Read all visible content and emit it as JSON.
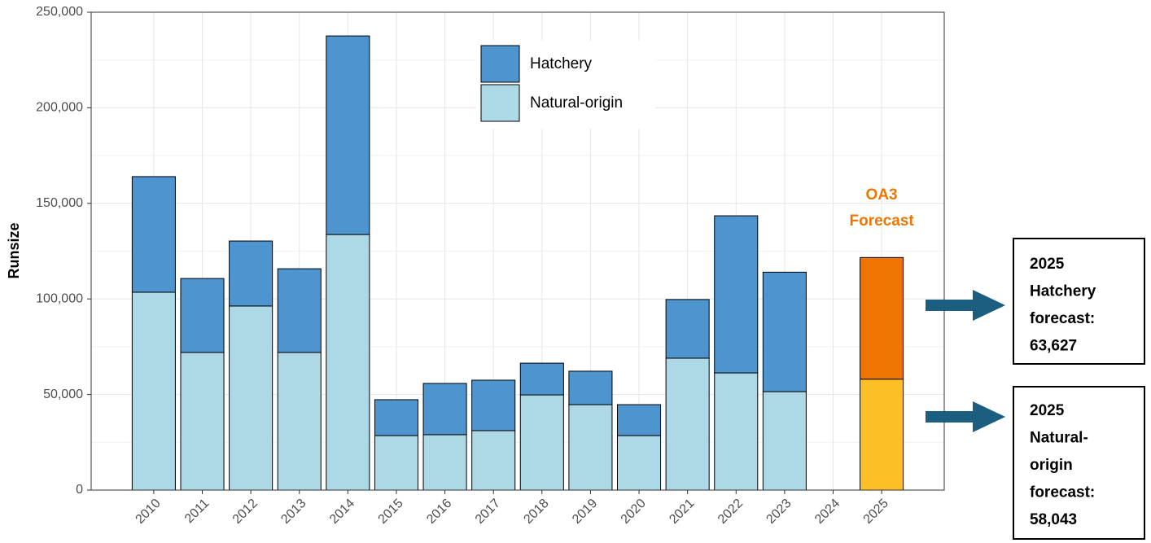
{
  "chart_data": {
    "type": "stacked_bar",
    "y_label": "Runsize",
    "categories": [
      "2010",
      "2011",
      "2012",
      "2013",
      "2014",
      "2015",
      "2016",
      "2017",
      "2018",
      "2019",
      "2020",
      "2021",
      "2022",
      "2023",
      "2024",
      "2025"
    ],
    "series": [
      {
        "name": "Natural-origin",
        "color": "#add8e6",
        "colors": [
          "#add8e6",
          "#add8e6",
          "#add8e6",
          "#add8e6",
          "#add8e6",
          "#add8e6",
          "#add8e6",
          "#add8e6",
          "#add8e6",
          "#add8e6",
          "#add8e6",
          "#add8e6",
          "#add8e6",
          "#add8e6",
          "#add8e6",
          "#fdbf26"
        ],
        "values": [
          103500,
          72000,
          96300,
          72000,
          133700,
          28500,
          29000,
          31100,
          49800,
          44700,
          28500,
          69000,
          61300,
          51500,
          null,
          58043
        ]
      },
      {
        "name": "Hatchery",
        "color": "#4e94cf",
        "colors": [
          "#4e94cf",
          "#4e94cf",
          "#4e94cf",
          "#4e94cf",
          "#4e94cf",
          "#4e94cf",
          "#4e94cf",
          "#4e94cf",
          "#4e94cf",
          "#4e94cf",
          "#4e94cf",
          "#4e94cf",
          "#4e94cf",
          "#4e94cf",
          "#4e94cf",
          "#ee7600"
        ],
        "values": [
          60500,
          38700,
          34000,
          43800,
          103900,
          18800,
          26800,
          26400,
          16600,
          17500,
          16200,
          30700,
          82200,
          62500,
          null,
          63627
        ]
      }
    ],
    "ylim": [
      0,
      250000
    ],
    "yticks": [
      0,
      {
        "value": 50000,
        "label": "50,000"
      },
      {
        "value": 100000,
        "label": "100,000"
      },
      {
        "value": 150000,
        "label": "150,000"
      },
      {
        "value": 200000,
        "label": "200,000"
      },
      {
        "value": 250000,
        "label": "250,000"
      }
    ],
    "grid": true,
    "legend": "top",
    "annotations": [
      {
        "lines": [
          "OA3",
          "Forecast"
        ],
        "color": "#ee7600"
      },
      {
        "lines": [
          "2025",
          "Hatchery",
          "forecast:",
          "63,627"
        ]
      },
      {
        "lines": [
          "2025",
          "Natural-",
          "origin",
          "forecast:",
          "58,043"
        ]
      }
    ]
  }
}
